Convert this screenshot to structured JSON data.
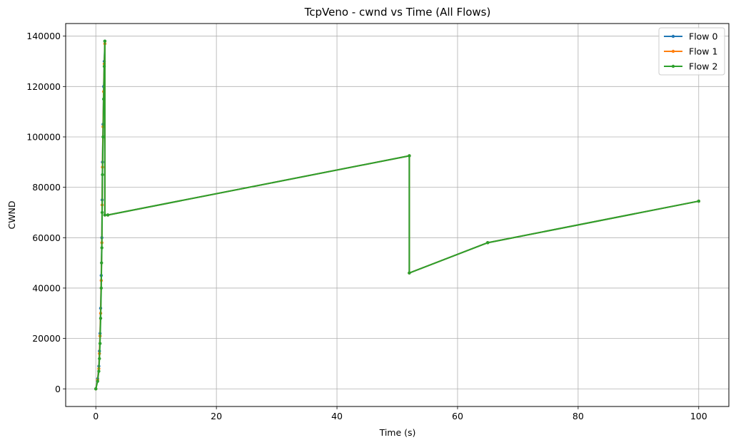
{
  "chart_data": {
    "type": "line",
    "title": "TcpVeno - cwnd vs Time (All Flows)",
    "xlabel": "Time (s)",
    "ylabel": "CWND",
    "xlim": [
      -5,
      105
    ],
    "ylim": [
      -7000,
      145000
    ],
    "xticks": [
      0,
      20,
      40,
      60,
      80,
      100
    ],
    "yticks": [
      0,
      20000,
      40000,
      60000,
      80000,
      100000,
      120000,
      140000
    ],
    "grid": true,
    "legend_position": "top-right",
    "series": [
      {
        "name": "Flow 0",
        "color": "#1f77b4",
        "points": [
          [
            0,
            0
          ],
          [
            0.3,
            4000
          ],
          [
            0.5,
            9000
          ],
          [
            0.6,
            15000
          ],
          [
            0.7,
            22000
          ],
          [
            0.8,
            32000
          ],
          [
            0.9,
            45000
          ],
          [
            1.0,
            60000
          ],
          [
            1.05,
            75000
          ],
          [
            1.1,
            90000
          ],
          [
            1.2,
            105000
          ],
          [
            1.3,
            120000
          ],
          [
            1.4,
            130000
          ],
          [
            1.5,
            138000
          ],
          [
            1.5,
            69000
          ],
          [
            2,
            69000
          ],
          [
            52,
            92500
          ],
          [
            52,
            46000
          ],
          [
            65,
            58000
          ],
          [
            100,
            74500
          ]
        ]
      },
      {
        "name": "Flow 1",
        "color": "#ff7f0e",
        "points": [
          [
            0,
            0
          ],
          [
            0.3,
            3500
          ],
          [
            0.5,
            8000
          ],
          [
            0.6,
            14000
          ],
          [
            0.7,
            21000
          ],
          [
            0.8,
            30000
          ],
          [
            0.9,
            43000
          ],
          [
            1.0,
            58000
          ],
          [
            1.05,
            73000
          ],
          [
            1.1,
            88000
          ],
          [
            1.2,
            104000
          ],
          [
            1.3,
            118000
          ],
          [
            1.4,
            129000
          ],
          [
            1.5,
            137000
          ],
          [
            1.5,
            69000
          ],
          [
            2,
            69000
          ],
          [
            52,
            92500
          ],
          [
            52,
            46000
          ],
          [
            65,
            58000
          ],
          [
            100,
            74500
          ]
        ]
      },
      {
        "name": "Flow 2",
        "color": "#2ca02c",
        "points": [
          [
            0,
            0
          ],
          [
            0.3,
            3000
          ],
          [
            0.5,
            7000
          ],
          [
            0.6,
            12000
          ],
          [
            0.7,
            18000
          ],
          [
            0.8,
            28000
          ],
          [
            0.9,
            40000
          ],
          [
            0.95,
            50000
          ],
          [
            1.0,
            56000
          ],
          [
            1.05,
            70000
          ],
          [
            1.1,
            85000
          ],
          [
            1.2,
            100000
          ],
          [
            1.3,
            115000
          ],
          [
            1.4,
            128000
          ],
          [
            1.5,
            138000
          ],
          [
            1.5,
            69000
          ],
          [
            2,
            69000
          ],
          [
            52,
            92500
          ],
          [
            52,
            46000
          ],
          [
            65,
            58000
          ],
          [
            100,
            74500
          ]
        ]
      }
    ]
  }
}
